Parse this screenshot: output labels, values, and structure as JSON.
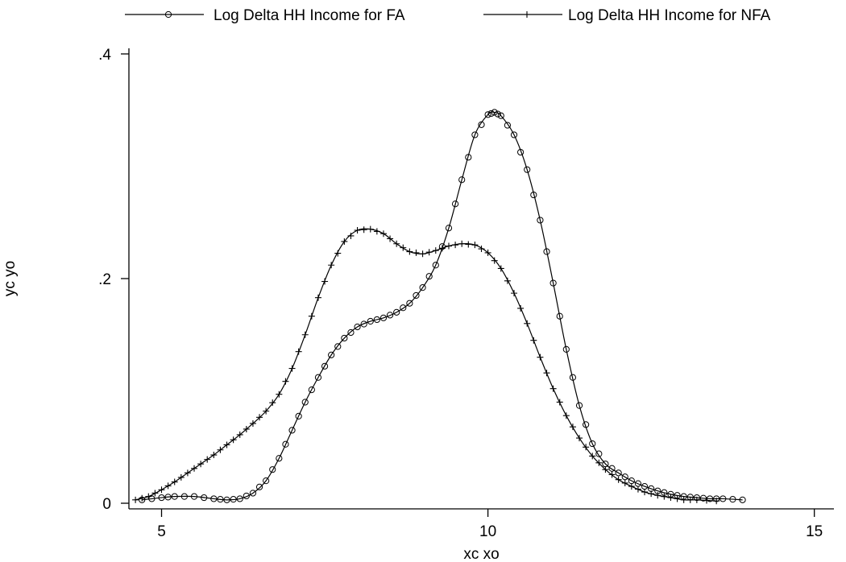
{
  "chart_data": {
    "type": "line",
    "title": "",
    "xlabel": "xc xo",
    "ylabel": "yc yo",
    "xlim": [
      4.5,
      15.3
    ],
    "ylim": [
      -0.005,
      0.405
    ],
    "x_ticks": [
      5,
      10,
      15
    ],
    "x_tick_labels": [
      "5",
      "10",
      "15"
    ],
    "y_ticks": [
      0,
      0.2,
      0.4
    ],
    "y_tick_labels": [
      "0",
      ".2",
      ".4"
    ],
    "grid": false,
    "legend": "top",
    "series": [
      {
        "name": "Log Delta HH Income for FA",
        "marker": "circle",
        "color": "#000000",
        "points": [
          [
            4.7,
            0.003
          ],
          [
            5.0,
            0.005
          ],
          [
            5.2,
            0.006
          ],
          [
            5.5,
            0.006
          ],
          [
            5.8,
            0.004
          ],
          [
            6.0,
            0.003
          ],
          [
            6.2,
            0.004
          ],
          [
            6.4,
            0.009
          ],
          [
            6.6,
            0.02
          ],
          [
            6.8,
            0.04
          ],
          [
            7.0,
            0.065
          ],
          [
            7.2,
            0.09
          ],
          [
            7.4,
            0.112
          ],
          [
            7.6,
            0.132
          ],
          [
            7.8,
            0.147
          ],
          [
            8.0,
            0.157
          ],
          [
            8.2,
            0.162
          ],
          [
            8.4,
            0.165
          ],
          [
            8.6,
            0.17
          ],
          [
            8.8,
            0.178
          ],
          [
            9.0,
            0.192
          ],
          [
            9.2,
            0.212
          ],
          [
            9.4,
            0.245
          ],
          [
            9.6,
            0.288
          ],
          [
            9.8,
            0.328
          ],
          [
            10.0,
            0.346
          ],
          [
            10.1,
            0.348
          ],
          [
            10.2,
            0.345
          ],
          [
            10.4,
            0.328
          ],
          [
            10.6,
            0.297
          ],
          [
            10.8,
            0.252
          ],
          [
            11.0,
            0.196
          ],
          [
            11.2,
            0.137
          ],
          [
            11.4,
            0.087
          ],
          [
            11.6,
            0.053
          ],
          [
            11.8,
            0.035
          ],
          [
            12.0,
            0.027
          ],
          [
            12.2,
            0.02
          ],
          [
            12.4,
            0.015
          ],
          [
            12.6,
            0.011
          ],
          [
            12.8,
            0.008
          ],
          [
            13.0,
            0.006
          ],
          [
            13.2,
            0.005
          ],
          [
            13.4,
            0.004
          ],
          [
            13.6,
            0.004
          ],
          [
            13.9,
            0.003
          ]
        ]
      },
      {
        "name": "Log Delta HH Income for NFA",
        "marker": "plus",
        "color": "#000000",
        "points": [
          [
            4.6,
            0.003
          ],
          [
            4.8,
            0.006
          ],
          [
            5.0,
            0.012
          ],
          [
            5.2,
            0.019
          ],
          [
            5.4,
            0.027
          ],
          [
            5.6,
            0.035
          ],
          [
            5.8,
            0.043
          ],
          [
            6.0,
            0.052
          ],
          [
            6.2,
            0.061
          ],
          [
            6.4,
            0.071
          ],
          [
            6.6,
            0.082
          ],
          [
            6.8,
            0.097
          ],
          [
            7.0,
            0.12
          ],
          [
            7.2,
            0.15
          ],
          [
            7.4,
            0.183
          ],
          [
            7.6,
            0.212
          ],
          [
            7.8,
            0.233
          ],
          [
            8.0,
            0.243
          ],
          [
            8.2,
            0.244
          ],
          [
            8.4,
            0.24
          ],
          [
            8.6,
            0.231
          ],
          [
            8.8,
            0.224
          ],
          [
            9.0,
            0.222
          ],
          [
            9.2,
            0.225
          ],
          [
            9.4,
            0.229
          ],
          [
            9.6,
            0.231
          ],
          [
            9.8,
            0.23
          ],
          [
            10.0,
            0.223
          ],
          [
            10.2,
            0.209
          ],
          [
            10.4,
            0.187
          ],
          [
            10.6,
            0.16
          ],
          [
            10.8,
            0.13
          ],
          [
            11.0,
            0.102
          ],
          [
            11.2,
            0.078
          ],
          [
            11.4,
            0.058
          ],
          [
            11.6,
            0.042
          ],
          [
            11.8,
            0.03
          ],
          [
            12.0,
            0.021
          ],
          [
            12.2,
            0.015
          ],
          [
            12.4,
            0.01
          ],
          [
            12.6,
            0.007
          ],
          [
            12.8,
            0.005
          ],
          [
            13.0,
            0.003
          ],
          [
            13.2,
            0.003
          ],
          [
            13.5,
            0.002
          ]
        ]
      }
    ]
  }
}
